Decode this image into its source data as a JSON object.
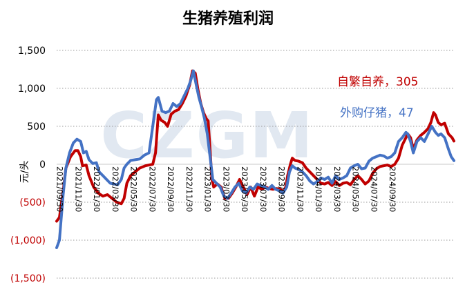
{
  "chart_data": {
    "type": "line",
    "title": "生猪养殖利润",
    "ylabel": "元/头",
    "ylim": [
      -1500,
      1500
    ],
    "yticks": [
      {
        "value": 1500,
        "label": "1,500"
      },
      {
        "value": 1000,
        "label": "1,000"
      },
      {
        "value": 500,
        "label": "500"
      },
      {
        "value": 0,
        "label": "0"
      },
      {
        "value": -500,
        "label": "(500)"
      },
      {
        "value": -1000,
        "label": "(1,000)"
      },
      {
        "value": -1500,
        "label": "(1,500)"
      }
    ],
    "grid": true,
    "watermark": "CZGM",
    "xtick_labels": [
      "2021/09/30",
      "2021/11/30",
      "2022/01/30",
      "2022/03/30",
      "2022/05/30",
      "2022/07/30",
      "2022/09/30",
      "2022/11/30",
      "2023/01/30",
      "2023/03/30",
      "2023/05/30",
      "2023/07/30",
      "2023/09/30",
      "2023/11/30",
      "2024/01/30",
      "2024/03/30",
      "2024/05/30",
      "2024/07/30",
      "2024/09/30"
    ],
    "series": [
      {
        "name": "自繁自养",
        "color": "#c00000",
        "last_label": "自繁自养，305",
        "points": [
          [
            0,
            -750
          ],
          [
            0.3,
            -700
          ],
          [
            0.7,
            -350
          ],
          [
            1.0,
            -50
          ],
          [
            1.5,
            100
          ],
          [
            2.0,
            180
          ],
          [
            2.3,
            180
          ],
          [
            2.6,
            100
          ],
          [
            2.8,
            -20
          ],
          [
            3.2,
            -10
          ],
          [
            3.5,
            -150
          ],
          [
            4.0,
            -300
          ],
          [
            4.5,
            -380
          ],
          [
            5.0,
            -420
          ],
          [
            5.5,
            -400
          ],
          [
            6.0,
            -450
          ],
          [
            6.5,
            -500
          ],
          [
            7.0,
            -520
          ],
          [
            7.3,
            -450
          ],
          [
            7.6,
            -250
          ],
          [
            8.0,
            -150
          ],
          [
            8.5,
            -100
          ],
          [
            9.0,
            -50
          ],
          [
            9.6,
            -20
          ],
          [
            10.0,
            -10
          ],
          [
            10.4,
            0
          ],
          [
            10.7,
            150
          ],
          [
            11.0,
            650
          ],
          [
            11.3,
            580
          ],
          [
            11.7,
            550
          ],
          [
            12.0,
            500
          ],
          [
            12.4,
            660
          ],
          [
            12.8,
            700
          ],
          [
            13.2,
            720
          ],
          [
            13.6,
            800
          ],
          [
            14.0,
            900
          ],
          [
            14.4,
            1050
          ],
          [
            14.7,
            1230
          ],
          [
            15.0,
            1200
          ],
          [
            15.3,
            980
          ],
          [
            15.6,
            800
          ],
          [
            15.9,
            680
          ],
          [
            16.2,
            600
          ],
          [
            16.4,
            570
          ],
          [
            16.6,
            200
          ],
          [
            16.8,
            -200
          ],
          [
            17.0,
            -300
          ],
          [
            17.4,
            -260
          ],
          [
            17.8,
            -300
          ],
          [
            18.2,
            -450
          ],
          [
            18.6,
            -450
          ],
          [
            19.0,
            -380
          ],
          [
            19.4,
            -300
          ],
          [
            19.8,
            -200
          ],
          [
            20.2,
            -300
          ],
          [
            20.6,
            -400
          ],
          [
            21.0,
            -300
          ],
          [
            21.4,
            -420
          ],
          [
            21.8,
            -300
          ],
          [
            22.2,
            -330
          ],
          [
            22.6,
            -300
          ],
          [
            23.0,
            -320
          ],
          [
            23.4,
            -330
          ],
          [
            23.8,
            -320
          ],
          [
            24.2,
            -330
          ],
          [
            24.5,
            -360
          ],
          [
            24.8,
            -300
          ],
          [
            25.0,
            -150
          ],
          [
            25.3,
            0
          ],
          [
            25.5,
            80
          ],
          [
            25.8,
            50
          ],
          [
            26.2,
            40
          ],
          [
            26.6,
            20
          ],
          [
            27.0,
            -50
          ],
          [
            27.4,
            -100
          ],
          [
            27.8,
            -150
          ],
          [
            28.2,
            -200
          ],
          [
            28.6,
            -250
          ],
          [
            29.0,
            -260
          ],
          [
            29.4,
            -240
          ],
          [
            29.8,
            -280
          ],
          [
            30.2,
            -230
          ],
          [
            30.6,
            -280
          ],
          [
            31.0,
            -250
          ],
          [
            31.4,
            -240
          ],
          [
            31.8,
            -270
          ],
          [
            32.2,
            -200
          ],
          [
            32.6,
            -150
          ],
          [
            33.0,
            -200
          ],
          [
            33.4,
            -260
          ],
          [
            33.8,
            -220
          ],
          [
            34.2,
            -120
          ],
          [
            34.6,
            -60
          ],
          [
            35.0,
            -30
          ],
          [
            35.4,
            -20
          ],
          [
            35.8,
            -10
          ],
          [
            36.2,
            -30
          ],
          [
            36.6,
            0
          ],
          [
            37.0,
            80
          ],
          [
            37.4,
            250
          ],
          [
            37.8,
            350
          ],
          [
            38.0,
            400
          ],
          [
            38.3,
            350
          ],
          [
            38.6,
            200
          ],
          [
            39.0,
            320
          ],
          [
            39.4,
            380
          ],
          [
            39.8,
            420
          ],
          [
            40.2,
            470
          ],
          [
            40.5,
            550
          ],
          [
            40.8,
            680
          ],
          [
            41.0,
            650
          ],
          [
            41.3,
            550
          ],
          [
            41.6,
            520
          ],
          [
            42.0,
            540
          ],
          [
            42.4,
            400
          ],
          [
            42.8,
            350
          ],
          [
            43.0,
            305
          ]
        ]
      },
      {
        "name": "外购仔猪",
        "color": "#4472c4",
        "last_label": "外购仔猪，47",
        "points": [
          [
            0,
            -1100
          ],
          [
            0.3,
            -1000
          ],
          [
            0.7,
            -400
          ],
          [
            1.0,
            -50
          ],
          [
            1.4,
            150
          ],
          [
            1.8,
            280
          ],
          [
            2.2,
            330
          ],
          [
            2.6,
            300
          ],
          [
            2.9,
            150
          ],
          [
            3.2,
            170
          ],
          [
            3.5,
            60
          ],
          [
            3.9,
            10
          ],
          [
            4.3,
            20
          ],
          [
            4.6,
            -100
          ],
          [
            5.0,
            -150
          ],
          [
            5.4,
            -200
          ],
          [
            5.8,
            -250
          ],
          [
            6.2,
            -260
          ],
          [
            6.6,
            -270
          ],
          [
            7.0,
            -200
          ],
          [
            7.3,
            -50
          ],
          [
            7.6,
            0
          ],
          [
            8.0,
            50
          ],
          [
            8.5,
            60
          ],
          [
            9.0,
            70
          ],
          [
            9.5,
            120
          ],
          [
            10.0,
            150
          ],
          [
            10.4,
            500
          ],
          [
            10.8,
            850
          ],
          [
            11.0,
            880
          ],
          [
            11.4,
            700
          ],
          [
            11.8,
            680
          ],
          [
            12.2,
            700
          ],
          [
            12.6,
            800
          ],
          [
            13.0,
            760
          ],
          [
            13.4,
            800
          ],
          [
            13.8,
            900
          ],
          [
            14.2,
            1000
          ],
          [
            14.5,
            1100
          ],
          [
            14.8,
            1230
          ],
          [
            15.1,
            1050
          ],
          [
            15.4,
            880
          ],
          [
            15.7,
            750
          ],
          [
            16.0,
            600
          ],
          [
            16.3,
            400
          ],
          [
            16.6,
            100
          ],
          [
            16.9,
            -200
          ],
          [
            17.3,
            -250
          ],
          [
            17.7,
            -300
          ],
          [
            18.1,
            -420
          ],
          [
            18.5,
            -450
          ],
          [
            18.9,
            -380
          ],
          [
            19.3,
            -300
          ],
          [
            19.7,
            -250
          ],
          [
            20.1,
            -350
          ],
          [
            20.5,
            -380
          ],
          [
            20.9,
            -300
          ],
          [
            21.3,
            -330
          ],
          [
            21.7,
            -260
          ],
          [
            22.1,
            -280
          ],
          [
            22.5,
            -300
          ],
          [
            22.9,
            -330
          ],
          [
            23.3,
            -280
          ],
          [
            23.7,
            -330
          ],
          [
            24.1,
            -350
          ],
          [
            24.5,
            -380
          ],
          [
            24.9,
            -300
          ],
          [
            25.2,
            -100
          ],
          [
            25.5,
            -20
          ],
          [
            25.8,
            -50
          ],
          [
            26.2,
            -70
          ],
          [
            26.6,
            -100
          ],
          [
            27.0,
            -150
          ],
          [
            27.4,
            -220
          ],
          [
            27.8,
            -260
          ],
          [
            28.2,
            -230
          ],
          [
            28.6,
            -180
          ],
          [
            29.0,
            -200
          ],
          [
            29.4,
            -170
          ],
          [
            29.8,
            -250
          ],
          [
            30.2,
            -150
          ],
          [
            30.6,
            -200
          ],
          [
            31.0,
            -180
          ],
          [
            31.4,
            -150
          ],
          [
            31.8,
            -50
          ],
          [
            32.2,
            -20
          ],
          [
            32.6,
            0
          ],
          [
            33.0,
            -60
          ],
          [
            33.4,
            -50
          ],
          [
            33.8,
            40
          ],
          [
            34.2,
            80
          ],
          [
            34.6,
            100
          ],
          [
            35.0,
            120
          ],
          [
            35.4,
            110
          ],
          [
            35.8,
            80
          ],
          [
            36.2,
            100
          ],
          [
            36.6,
            150
          ],
          [
            37.0,
            300
          ],
          [
            37.4,
            350
          ],
          [
            37.8,
            420
          ],
          [
            38.0,
            400
          ],
          [
            38.3,
            300
          ],
          [
            38.6,
            150
          ],
          [
            39.0,
            300
          ],
          [
            39.4,
            350
          ],
          [
            39.8,
            300
          ],
          [
            40.2,
            400
          ],
          [
            40.6,
            500
          ],
          [
            41.0,
            420
          ],
          [
            41.3,
            380
          ],
          [
            41.6,
            400
          ],
          [
            42.0,
            350
          ],
          [
            42.4,
            200
          ],
          [
            42.7,
            100
          ],
          [
            43.0,
            47
          ]
        ]
      }
    ]
  }
}
